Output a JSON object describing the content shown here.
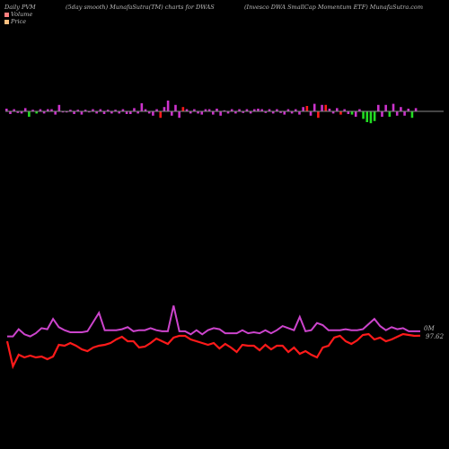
{
  "header": {
    "left": "Daily PVM",
    "mid": "(5day smooth) MunafaSutra(TM) charts for DWAS",
    "right": "(Invesco  DWA SmallCap Momentum ETF) MunafaSutra.com"
  },
  "legend": {
    "volume_label": "Volume",
    "price_label": "Price",
    "volume_color": "#ff8080",
    "price_color": "#ffc080"
  },
  "colors": {
    "background": "#000000",
    "up_bar": "#cc33cc",
    "down_bar": "#ff1a1a",
    "strong_down_bar": "#22dd22",
    "zero_line": "#888888",
    "volume_line": "#cc44cc",
    "price_line": "#ff1a1a"
  },
  "chart_data": {
    "type": "bar",
    "bar_series": {
      "name": "Volume",
      "values": [
        5,
        -5,
        4,
        -3,
        -4,
        6,
        -10,
        3,
        -4,
        4,
        -4,
        4,
        4,
        -6,
        12,
        -2,
        -2,
        3,
        -5,
        3,
        -6,
        3,
        -2,
        4,
        -4,
        4,
        -5,
        3,
        -4,
        3,
        -4,
        4,
        -5,
        -5,
        6,
        -4,
        15,
        4,
        -4,
        -8,
        4,
        -12,
        8,
        20,
        -8,
        12,
        -12,
        8,
        4,
        -4,
        4,
        -4,
        -6,
        4,
        4,
        -6,
        5,
        -8,
        2,
        -4,
        4,
        -4,
        4,
        -3,
        4,
        -4,
        4,
        5,
        4,
        -3,
        4,
        -4,
        4,
        -3,
        -6,
        4,
        -4,
        4,
        -6,
        8,
        10,
        -8,
        14,
        -12,
        12,
        12,
        5,
        -4,
        6,
        -6,
        4,
        -5,
        -6,
        -10,
        4,
        -14,
        -20,
        -22,
        -18,
        12,
        -10,
        12,
        -10,
        14,
        -8,
        8,
        -8,
        5,
        -12,
        6
      ],
      "bar_colors": [
        "up",
        "up",
        "up",
        "up",
        "up",
        "up",
        "green",
        "up",
        "green",
        "up",
        "up",
        "up",
        "up",
        "up",
        "up",
        "up",
        "up",
        "up",
        "up",
        "up",
        "up",
        "up",
        "up",
        "up",
        "up",
        "up",
        "up",
        "up",
        "up",
        "up",
        "up",
        "up",
        "up",
        "up",
        "up",
        "up",
        "up",
        "up",
        "up",
        "up",
        "up",
        "red",
        "up",
        "up",
        "up",
        "up",
        "up",
        "red",
        "up",
        "up",
        "up",
        "up",
        "up",
        "up",
        "up",
        "up",
        "up",
        "up",
        "up",
        "up",
        "up",
        "up",
        "up",
        "up",
        "up",
        "up",
        "up",
        "up",
        "up",
        "up",
        "up",
        "up",
        "up",
        "up",
        "up",
        "up",
        "up",
        "up",
        "up",
        "up",
        "red",
        "up",
        "up",
        "red",
        "up",
        "red",
        "up",
        "up",
        "up",
        "red",
        "up",
        "up",
        "green",
        "up",
        "up",
        "green",
        "green",
        "green",
        "green",
        "up",
        "up",
        "up",
        "green",
        "up",
        "up",
        "up",
        "up",
        "up",
        "green",
        "up"
      ]
    },
    "series": [
      {
        "name": "Volume",
        "values": [
          63,
          63,
          70,
          65,
          63,
          66,
          71,
          70,
          80,
          72,
          69,
          67,
          67,
          67,
          68,
          77,
          86,
          69,
          69,
          69,
          70,
          72,
          68,
          69,
          69,
          71,
          69,
          68,
          68,
          93,
          68,
          68,
          65,
          69,
          65,
          69,
          71,
          70,
          66,
          66,
          66,
          69,
          66,
          67,
          66,
          69,
          66,
          69,
          73,
          71,
          69,
          82,
          68,
          69,
          76,
          74,
          69,
          69,
          69,
          70,
          69,
          69,
          70,
          75,
          80,
          73,
          69,
          72,
          70,
          71,
          68,
          68,
          68
        ]
      },
      {
        "name": "Price",
        "values": [
          97.0,
          94.2,
          95.5,
          95.2,
          95.4,
          95.2,
          95.3,
          95.0,
          95.3,
          96.6,
          96.5,
          96.8,
          96.5,
          96.1,
          95.9,
          96.3,
          96.5,
          96.6,
          96.8,
          97.2,
          97.5,
          97.0,
          97.0,
          96.3,
          96.4,
          96.8,
          97.3,
          97.0,
          96.7,
          97.4,
          97.6,
          97.6,
          97.2,
          97.0,
          96.8,
          96.6,
          96.8,
          96.2,
          96.7,
          96.3,
          95.8,
          96.6,
          96.5,
          96.5,
          96.0,
          96.6,
          96.1,
          96.5,
          96.5,
          95.8,
          96.3,
          95.6,
          95.9,
          95.5,
          95.2,
          96.3,
          96.5,
          97.4,
          97.6,
          97.0,
          96.7,
          97.1,
          97.7,
          97.8,
          97.2,
          97.4,
          97.0,
          97.2,
          97.5,
          97.8,
          97.7,
          97.6,
          97.62
        ]
      }
    ],
    "last_values": {
      "volume_label": "0M",
      "price_label": "97.62"
    },
    "grid": false,
    "legend_position": "top-left"
  }
}
